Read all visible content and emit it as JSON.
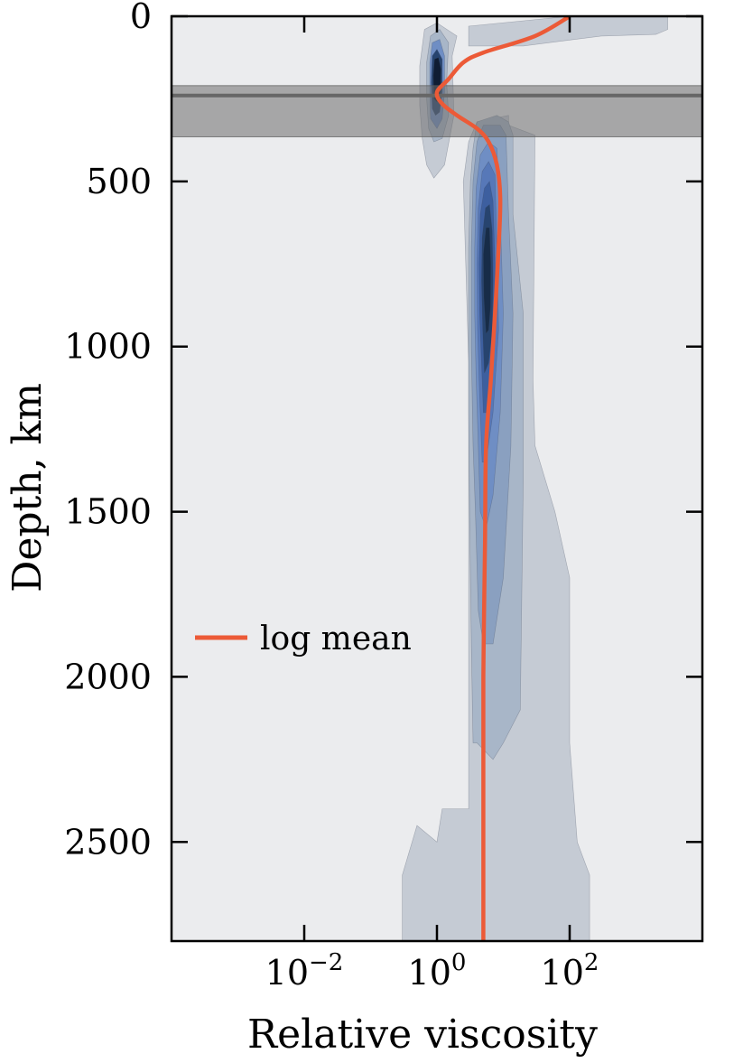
{
  "chart_data": {
    "type": "area",
    "xlabel": "Relative viscosity",
    "ylabel": "Depth, km",
    "x_scale": "log10",
    "xlim": [
      0.0001,
      10000
    ],
    "ylim": [
      2800,
      0
    ],
    "x_ticks": [
      {
        "value": 0.01,
        "base": "10",
        "exp": "−2"
      },
      {
        "value": 1,
        "base": "10",
        "exp": "0"
      },
      {
        "value": 100,
        "base": "10",
        "exp": "2"
      }
    ],
    "y_ticks": [
      0,
      500,
      1000,
      1500,
      2000,
      2500
    ],
    "y_tick_labels": [
      "0",
      "500",
      "1000",
      "1500",
      "2000",
      "2500"
    ],
    "shaded_band": {
      "depth_top": 210,
      "depth_bottom": 365,
      "center_line": 240
    },
    "series": [
      {
        "name": "log mean",
        "color": "#ec5a37",
        "points": [
          [
            100,
            0
          ],
          [
            30,
            60
          ],
          [
            5,
            110
          ],
          [
            2.5,
            140
          ],
          [
            1.5,
            190
          ],
          [
            1,
            230
          ],
          [
            1.2,
            265
          ],
          [
            2,
            300
          ],
          [
            4,
            340
          ],
          [
            6,
            380
          ],
          [
            8,
            450
          ],
          [
            9,
            550
          ],
          [
            8.5,
            700
          ],
          [
            7.5,
            900
          ],
          [
            6.5,
            1100
          ],
          [
            5.5,
            1300
          ],
          [
            5.3,
            1600
          ],
          [
            5,
            2000
          ],
          [
            5,
            2400
          ],
          [
            5,
            2800
          ]
        ]
      }
    ],
    "density_levels": [
      {
        "color": "#c5cbd4",
        "polygon": [
          [
            0.3,
            2800
          ],
          [
            0.3,
            2600
          ],
          [
            0.5,
            2450
          ],
          [
            1,
            2500
          ],
          [
            1.2,
            2400
          ],
          [
            3,
            2400
          ],
          [
            3,
            1050
          ],
          [
            2.5,
            500
          ],
          [
            3,
            380
          ],
          [
            4,
            320
          ],
          [
            12,
            300
          ],
          [
            12,
            330
          ],
          [
            30,
            360
          ],
          [
            28,
            1100
          ],
          [
            30,
            1300
          ],
          [
            60,
            1500
          ],
          [
            100,
            1700
          ],
          [
            100,
            2200
          ],
          [
            130,
            2500
          ],
          [
            200,
            2600
          ],
          [
            200,
            2800
          ]
        ]
      },
      {
        "color": "#c5cbd4",
        "polygon": [
          [
            0.6,
            370
          ],
          [
            0.55,
            270
          ],
          [
            0.55,
            150
          ],
          [
            0.65,
            40
          ],
          [
            1,
            20
          ],
          [
            2,
            60
          ],
          [
            1.7,
            120
          ],
          [
            1.8,
            300
          ],
          [
            1.3,
            450
          ],
          [
            0.9,
            490
          ],
          [
            0.7,
            450
          ]
        ]
      },
      {
        "color": "#c5cbd4",
        "polygon": [
          [
            3,
            90
          ],
          [
            3,
            30
          ],
          [
            100,
            0
          ],
          [
            3000,
            0
          ],
          [
            3000,
            40
          ],
          [
            2000,
            55
          ],
          [
            300,
            60
          ],
          [
            20,
            90
          ]
        ]
      },
      {
        "color": "#a8b6c8",
        "polygon": [
          [
            3.5,
            2200
          ],
          [
            3.3,
            1900
          ],
          [
            3.1,
            1500
          ],
          [
            3,
            1200
          ],
          [
            3,
            900
          ],
          [
            3,
            700
          ],
          [
            3.2,
            500
          ],
          [
            3.5,
            400
          ],
          [
            4,
            320
          ],
          [
            8,
            300
          ],
          [
            12,
            320
          ],
          [
            14,
            360
          ],
          [
            14,
            600
          ],
          [
            20,
            900
          ],
          [
            20,
            1400
          ],
          [
            18,
            2100
          ],
          [
            10,
            2200
          ],
          [
            7,
            2250
          ],
          [
            4,
            2200
          ]
        ]
      },
      {
        "color": "#8aa0c0",
        "polygon": [
          [
            4.2,
            1800
          ],
          [
            3.8,
            1500
          ],
          [
            3.5,
            1300
          ],
          [
            3.3,
            1000
          ],
          [
            3.3,
            700
          ],
          [
            3.5,
            500
          ],
          [
            4,
            380
          ],
          [
            5,
            330
          ],
          [
            9,
            330
          ],
          [
            11,
            360
          ],
          [
            12,
            600
          ],
          [
            14,
            900
          ],
          [
            13,
            1300
          ],
          [
            10,
            1700
          ],
          [
            7,
            1900
          ],
          [
            5,
            1900
          ]
        ]
      },
      {
        "color": "#6f8ec4",
        "polygon": [
          [
            4.5,
            1500
          ],
          [
            4.2,
            1300
          ],
          [
            3.9,
            1100
          ],
          [
            3.7,
            900
          ],
          [
            3.7,
            700
          ],
          [
            3.9,
            520
          ],
          [
            4.5,
            420
          ],
          [
            6,
            380
          ],
          [
            8,
            400
          ],
          [
            9,
            600
          ],
          [
            10,
            900
          ],
          [
            9,
            1200
          ],
          [
            7,
            1450
          ],
          [
            5.5,
            1550
          ]
        ]
      },
      {
        "color": "#5778b8",
        "polygon": [
          [
            4.8,
            1350
          ],
          [
            4.4,
            1150
          ],
          [
            4.1,
            950
          ],
          [
            4,
            750
          ],
          [
            4.2,
            580
          ],
          [
            4.8,
            470
          ],
          [
            6,
            440
          ],
          [
            7.5,
            480
          ],
          [
            8,
            700
          ],
          [
            8.5,
            950
          ],
          [
            7,
            1200
          ],
          [
            5.5,
            1350
          ]
        ]
      },
      {
        "color": "#3d5f9f",
        "polygon": [
          [
            5,
            1200
          ],
          [
            4.7,
            1050
          ],
          [
            4.4,
            900
          ],
          [
            4.3,
            750
          ],
          [
            4.5,
            600
          ],
          [
            5.2,
            520
          ],
          [
            6.2,
            500
          ],
          [
            7,
            560
          ],
          [
            7.5,
            750
          ],
          [
            7.5,
            950
          ],
          [
            6.5,
            1100
          ],
          [
            5.5,
            1200
          ]
        ]
      },
      {
        "color": "#27446f",
        "polygon": [
          [
            5.2,
            1080
          ],
          [
            4.9,
            950
          ],
          [
            4.7,
            800
          ],
          [
            4.8,
            670
          ],
          [
            5.4,
            580
          ],
          [
            6.2,
            570
          ],
          [
            6.8,
            650
          ],
          [
            7,
            800
          ],
          [
            6.8,
            950
          ],
          [
            6,
            1050
          ]
        ]
      },
      {
        "color": "#172c48",
        "polygon": [
          [
            5.5,
            960
          ],
          [
            5.1,
            850
          ],
          [
            5,
            720
          ],
          [
            5.5,
            640
          ],
          [
            6.2,
            640
          ],
          [
            6.5,
            750
          ],
          [
            6.4,
            880
          ],
          [
            6,
            950
          ]
        ]
      },
      {
        "color": "#a8b6c8",
        "polygon": [
          [
            0.75,
            340
          ],
          [
            0.7,
            250
          ],
          [
            0.7,
            140
          ],
          [
            0.8,
            60
          ],
          [
            1.1,
            40
          ],
          [
            1.5,
            80
          ],
          [
            1.4,
            200
          ],
          [
            1.5,
            300
          ],
          [
            1.2,
            370
          ],
          [
            0.9,
            380
          ]
        ]
      },
      {
        "color": "#6f8ec4",
        "polygon": [
          [
            0.8,
            310
          ],
          [
            0.78,
            230
          ],
          [
            0.78,
            140
          ],
          [
            0.85,
            80
          ],
          [
            1.1,
            70
          ],
          [
            1.3,
            120
          ],
          [
            1.3,
            230
          ],
          [
            1.2,
            310
          ],
          [
            1,
            340
          ]
        ]
      },
      {
        "color": "#27446f",
        "polygon": [
          [
            0.85,
            280
          ],
          [
            0.82,
            200
          ],
          [
            0.85,
            120
          ],
          [
            1,
            100
          ],
          [
            1.2,
            130
          ],
          [
            1.2,
            230
          ],
          [
            1.1,
            290
          ],
          [
            0.95,
            300
          ]
        ]
      },
      {
        "color": "#0f1d33",
        "polygon": [
          [
            0.9,
            250
          ],
          [
            0.88,
            180
          ],
          [
            0.92,
            130
          ],
          [
            1.05,
            125
          ],
          [
            1.15,
            160
          ],
          [
            1.12,
            240
          ],
          [
            1,
            260
          ]
        ]
      }
    ]
  }
}
